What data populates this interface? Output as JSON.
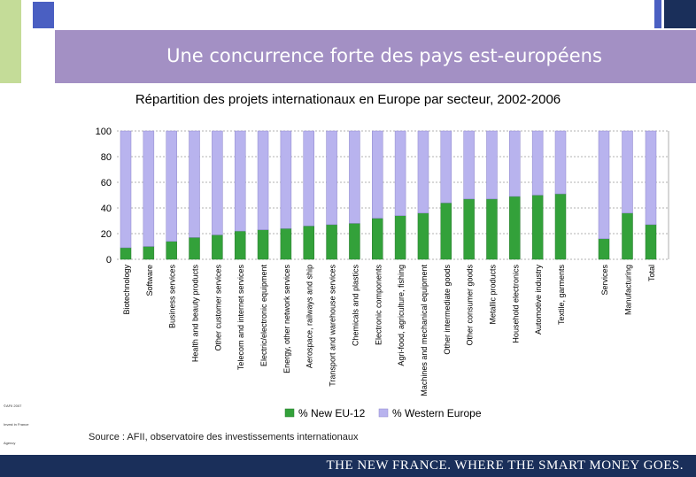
{
  "header": {
    "title": "Une concurrence  forte des pays est-européens"
  },
  "colors": {
    "new_eu": "#33a13a",
    "western": "#b8b3ee",
    "title_bg": "#a390c4",
    "footer_bg": "#1a2f5a"
  },
  "chart_data": {
    "type": "bar",
    "stacked": true,
    "title": "Répartition des projets internationaux en Europe par secteur, 2002-2006",
    "ylim": [
      0,
      100
    ],
    "yticks": [
      "100",
      "80",
      "60",
      "40",
      "20",
      "0"
    ],
    "categories": [
      "Biotechnology",
      "Software",
      "Business services",
      "Health and beauty products",
      "Other customer services",
      "Telecom and internet services",
      "Electric/electronic equipment",
      "Energy, other network services",
      "Aerospace, railways and ship",
      "Transport and warehouse services",
      "Chemicals and plastics",
      "Electronic components",
      "Agri-food, agriculture, fishing",
      "Machines and mechanical equipment",
      "Other intermediate goods",
      "Other consumer goods",
      "Metallic products",
      "Household electronics",
      "Automotive industry",
      "Textile, garments",
      "Services",
      "Manufacturing",
      "Total"
    ],
    "series": [
      {
        "name": "% New EU-12",
        "values": [
          9,
          10,
          14,
          17,
          19,
          22,
          23,
          24,
          26,
          27,
          28,
          32,
          34,
          36,
          44,
          47,
          47,
          49,
          50,
          51,
          16,
          36,
          27
        ]
      },
      {
        "name": "% Western Europe",
        "values": [
          91,
          90,
          86,
          83,
          81,
          78,
          77,
          76,
          74,
          73,
          72,
          68,
          66,
          64,
          56,
          53,
          53,
          51,
          50,
          49,
          84,
          64,
          73
        ]
      }
    ],
    "legend": [
      "% New EU-12",
      "% Western Europe"
    ],
    "legend_position": "bottom"
  },
  "source": "Source : AFII, observatoire des investissements internationaux",
  "footer": {
    "tagline": "THE NEW FRANCE. WHERE THE SMART MONEY GOES."
  },
  "side_notes": [
    "©AFII 2007",
    "Invest in France",
    "Agency"
  ]
}
